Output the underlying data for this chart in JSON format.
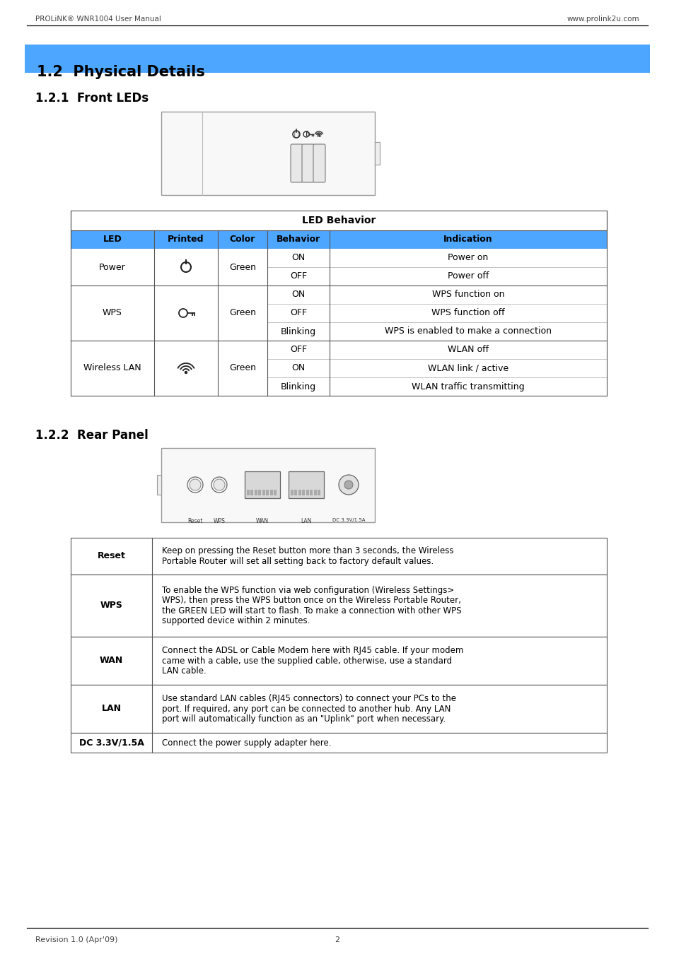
{
  "page_header_left": "PROLiNK® WNR1004 User Manual",
  "page_header_right": "www.prolink2u.com",
  "section_title": "1.2  Physical Details",
  "section_title_bg": "#4da6ff",
  "subsection1": "1.2.1  Front LEDs",
  "subsection2": "1.2.2  Rear Panel",
  "led_table_title": "LED Behavior",
  "led_headers": [
    "LED",
    "Printed",
    "Color",
    "Behavior",
    "Indication"
  ],
  "led_header_bg": "#4da6ff",
  "rear_rows": [
    [
      "Reset",
      "Keep on pressing the Reset button more than 3 seconds, the Wireless\nPortable Router will set all setting back to factory default values."
    ],
    [
      "WPS",
      "To enable the WPS function via web configuration (Wireless Settings>\nWPS), then press the WPS button once on the Wireless Portable Router,\nthe GREEN LED will start to flash. To make a connection with other WPS\nsupported device within 2 minutes."
    ],
    [
      "WAN",
      "Connect the ADSL or Cable Modem here with RJ45 cable. If your modem\ncame with a cable, use the supplied cable, otherwise, use a standard\nLAN cable."
    ],
    [
      "LAN",
      "Use standard LAN cables (RJ45 connectors) to connect your PCs to the\nport. If required, any port can be connected to another hub. Any LAN\nport will automatically function as an \"Uplink\" port when necessary."
    ],
    [
      "DC 3.3V/1.5A",
      "Connect the power supply adapter here."
    ]
  ],
  "page_footer_left": "Revision 1.0 (Apr'09)",
  "page_footer_center": "2",
  "bg_color": "#ffffff",
  "text_color": "#000000",
  "border_color": "#555555",
  "header_text_color": "#000000"
}
